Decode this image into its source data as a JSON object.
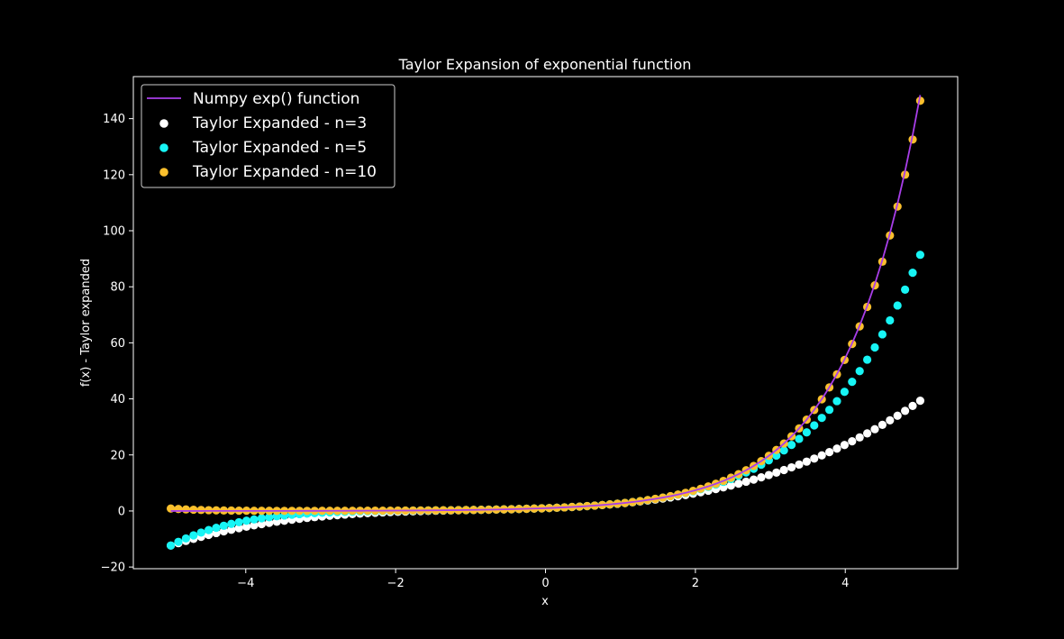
{
  "chart_data": {
    "type": "scatter",
    "title": "Taylor Expansion of exponential function",
    "xlabel": "x",
    "ylabel": "f(x) - Taylor expanded",
    "xlim": [
      -5.5,
      5.5
    ],
    "ylim": [
      -20.6,
      155
    ],
    "xticks": [
      -4,
      -2,
      0,
      2,
      4
    ],
    "xtick_labels": [
      "−4",
      "−2",
      "0",
      "2",
      "4"
    ],
    "yticks": [
      -20,
      0,
      20,
      40,
      60,
      80,
      100,
      120,
      140
    ],
    "ytick_labels": [
      "−20",
      "0",
      "20",
      "40",
      "60",
      "80",
      "100",
      "120",
      "140"
    ],
    "x_range": [
      -5,
      5
    ],
    "n_points": 100,
    "grid": false,
    "legend_position": "top-left",
    "background": "#000000",
    "series": [
      {
        "name": "Numpy exp() function",
        "kind": "line",
        "color": "#a83ee8",
        "function": "exp"
      },
      {
        "name": "Taylor Expanded - n=3",
        "kind": "scatter",
        "color": "#ffffff",
        "order": 3
      },
      {
        "name": "Taylor Expanded - n=5",
        "kind": "scatter",
        "color": "#17f5f5",
        "order": 5
      },
      {
        "name": "Taylor Expanded - n=10",
        "kind": "scatter",
        "color": "#fbc02d",
        "order": 10
      }
    ]
  }
}
